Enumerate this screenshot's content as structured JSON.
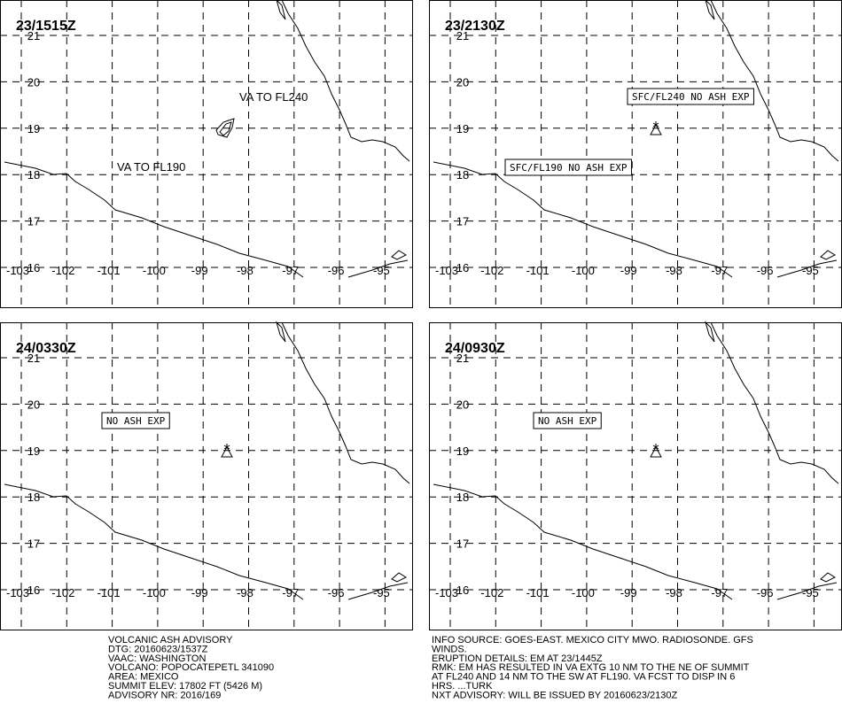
{
  "panels": [
    {
      "time": "23/1515Z",
      "labels": [
        "VA TO FL240",
        "VA TO FL190"
      ]
    },
    {
      "time": "23/2130Z",
      "labels": [
        "SFC/FL240 NO ASH EXP",
        "SFC/FL190 NO ASH EXP"
      ]
    },
    {
      "time": "24/0330Z",
      "labels": [
        "NO ASH EXP"
      ]
    },
    {
      "time": "24/0930Z",
      "labels": [
        "NO ASH EXP"
      ]
    }
  ],
  "lat_labels": [
    "21",
    "20",
    "19",
    "18",
    "17",
    "16"
  ],
  "lon_labels": [
    "-103",
    "-102",
    "-101",
    "-100",
    "-99",
    "-98",
    "-97",
    "-96",
    "-95"
  ],
  "advisory_left": [
    "VOLCANIC ASH ADVISORY",
    "DTG: 20160623/1537Z",
    "VAAC: WASHINGTON",
    "VOLCANO: POPOCATEPETL 341090",
    "AREA: MEXICO",
    "SUMMIT ELEV: 17802 FT (5426 M)",
    "ADVISORY NR: 2016/169"
  ],
  "advisory_right": [
    "INFO SOURCE: GOES-EAST. MEXICO CITY MWO. RADIOSONDE. GFS",
    "WINDS.",
    "ERUPTION DETAILS: EM AT 23/1445Z",
    "RMK: EM HAS RESULTED IN VA EXTG 10 NM TO THE NE OF SUMMIT",
    "AT FL240 AND 14 NM TO THE SW AT FL190. VA FCST TO DISP IN 6",
    "HRS. ...TURK",
    "NXT ADVISORY: WILL BE ISSUED BY 20160623/2130Z"
  ]
}
